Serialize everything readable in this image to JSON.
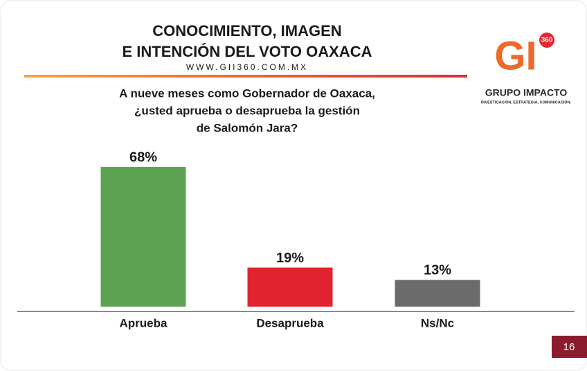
{
  "chart_data": {
    "type": "bar",
    "title": [
      "CONOCIMIENTO, IMAGEN",
      "E INTENCIÓN DEL VOTO OAXACA"
    ],
    "subtitle": "WWW.GII360.COM.MX",
    "question": [
      "A nueve meses como Gobernador de Oaxaca,",
      "¿usted aprueba o desaprueba la gestión",
      "de Salomón Jara?"
    ],
    "categories": [
      "Aprueba",
      "Desaprueba",
      "Ns/Nc"
    ],
    "values": [
      68,
      19,
      13
    ],
    "value_labels": [
      "68%",
      "19%",
      "13%"
    ],
    "colors": [
      "#5ba350",
      "#e0232e",
      "#6b6b6b"
    ]
  },
  "logo": {
    "mark": "GI",
    "badge": "360",
    "name": "GRUPO IMPACTO",
    "tagline": "INVESTIGACIÓN, ESTRATEGIA, COMUNICACIÓN."
  },
  "page_number": 16
}
